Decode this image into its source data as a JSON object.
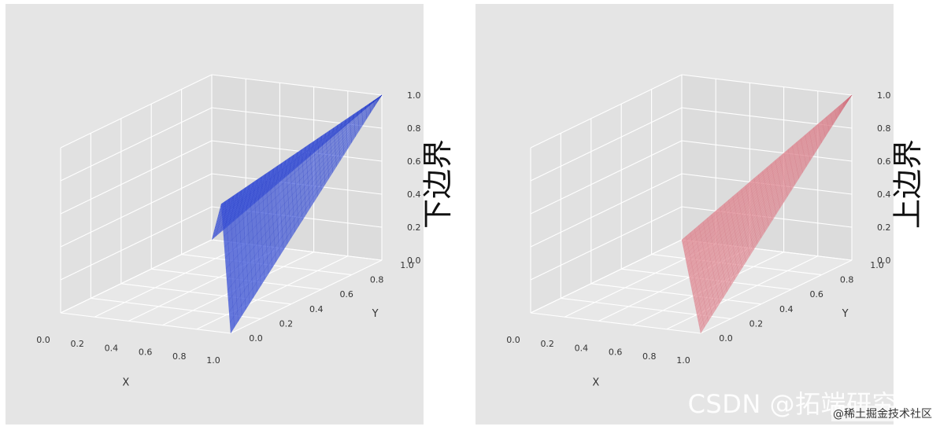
{
  "chart_data": [
    {
      "type": "surface3d",
      "zlabel": "下边界",
      "xlabel": "X",
      "ylabel": "Y",
      "xlim": [
        0,
        1
      ],
      "ylim": [
        0,
        1
      ],
      "zlim": [
        0,
        1
      ],
      "x_ticks": [
        "0.0",
        "0.2",
        "0.4",
        "0.6",
        "0.8",
        "1.0"
      ],
      "y_ticks": [
        "0.0",
        "0.2",
        "0.4",
        "0.6",
        "0.8",
        "1.0"
      ],
      "z_ticks": [
        "0.0",
        "0.2",
        "0.4",
        "0.6",
        "0.8",
        "1.0"
      ],
      "surface": "z = min(x, y), region where x + y >= 1",
      "surface_color": "#3e55d6",
      "edge_color": "#2238c4",
      "background": "#e5e5e5",
      "grid": true
    },
    {
      "type": "surface3d",
      "zlabel": "上边界",
      "xlabel": "X",
      "ylabel": "Y",
      "xlim": [
        0,
        1
      ],
      "ylim": [
        0,
        1
      ],
      "zlim": [
        0,
        1
      ],
      "x_ticks": [
        "0.0",
        "0.2",
        "0.4",
        "0.6",
        "0.8",
        "1.0"
      ],
      "y_ticks": [
        "0.0",
        "0.2",
        "0.4",
        "0.6",
        "0.8",
        "1.0"
      ],
      "z_ticks": [
        "0.0",
        "0.2",
        "0.4",
        "0.6",
        "0.8",
        "1.0"
      ],
      "surface": "z = max(0, x + y - 1), region where x + y >= 1",
      "surface_color": "#e08892",
      "edge_color": "#d06a78",
      "background": "#e5e5e5",
      "grid": true
    }
  ],
  "watermark": {
    "main": "CSDN @拓端研究",
    "sub": "@稀土掘金技术社区"
  }
}
